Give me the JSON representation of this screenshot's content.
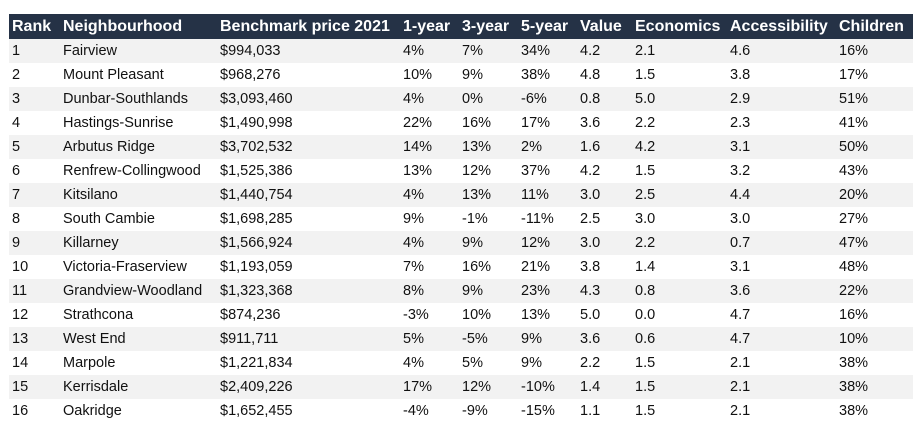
{
  "table": {
    "headers": [
      "Rank",
      "Neighbourhood",
      "Benchmark price 2021",
      "1-year",
      "3-year",
      "5-year",
      "Value",
      "Economics",
      "Accessibility",
      "Children"
    ],
    "rows": [
      [
        "1",
        "Fairview",
        "$994,033",
        "4%",
        "7%",
        "34%",
        "4.2",
        "2.1",
        "4.6",
        "16%"
      ],
      [
        "2",
        "Mount Pleasant",
        "$968,276",
        "10%",
        "9%",
        "38%",
        "4.8",
        "1.5",
        "3.8",
        "17%"
      ],
      [
        "3",
        "Dunbar-Southlands",
        "$3,093,460",
        "4%",
        "0%",
        "-6%",
        "0.8",
        "5.0",
        "2.9",
        "51%"
      ],
      [
        "4",
        "Hastings-Sunrise",
        "$1,490,998",
        "22%",
        "16%",
        "17%",
        "3.6",
        "2.2",
        "2.3",
        "41%"
      ],
      [
        "5",
        "Arbutus Ridge",
        "$3,702,532",
        "14%",
        "13%",
        "2%",
        "1.6",
        "4.2",
        "3.1",
        "50%"
      ],
      [
        "6",
        "Renfrew-Collingwood",
        "$1,525,386",
        "13%",
        "12%",
        "37%",
        "4.2",
        "1.5",
        "3.2",
        "43%"
      ],
      [
        "7",
        "Kitsilano",
        "$1,440,754",
        "4%",
        "13%",
        "11%",
        "3.0",
        "2.5",
        "4.4",
        "20%"
      ],
      [
        "8",
        "South Cambie",
        "$1,698,285",
        "9%",
        "-1%",
        "-11%",
        "2.5",
        "3.0",
        "3.0",
        "27%"
      ],
      [
        "9",
        "Killarney",
        "$1,566,924",
        "4%",
        "9%",
        "12%",
        "3.0",
        "2.2",
        "0.7",
        "47%"
      ],
      [
        "10",
        "Victoria-Fraserview",
        "$1,193,059",
        "7%",
        "16%",
        "21%",
        "3.8",
        "1.4",
        "3.1",
        "48%"
      ],
      [
        "11",
        "Grandview-Woodland",
        "$1,323,368",
        "8%",
        "9%",
        "23%",
        "4.3",
        "0.8",
        "3.6",
        "22%"
      ],
      [
        "12",
        "Strathcona",
        "$874,236",
        "-3%",
        "10%",
        "13%",
        "5.0",
        "0.0",
        "4.7",
        "16%"
      ],
      [
        "13",
        "West End",
        "$911,711",
        "5%",
        "-5%",
        "9%",
        "3.6",
        "0.6",
        "4.7",
        "10%"
      ],
      [
        "14",
        "Marpole",
        "$1,221,834",
        "4%",
        "5%",
        "9%",
        "2.2",
        "1.5",
        "2.1",
        "38%"
      ],
      [
        "15",
        "Kerrisdale",
        "$2,409,226",
        "17%",
        "12%",
        "-10%",
        "1.4",
        "1.5",
        "2.1",
        "38%"
      ],
      [
        "16",
        "Oakridge",
        "$1,652,455",
        "-4%",
        "-9%",
        "-15%",
        "1.1",
        "1.5",
        "2.1",
        "38%"
      ]
    ]
  },
  "colors": {
    "header_bg": "#253246",
    "header_text": "#ffffff",
    "stripe": "#f2f2f2"
  }
}
